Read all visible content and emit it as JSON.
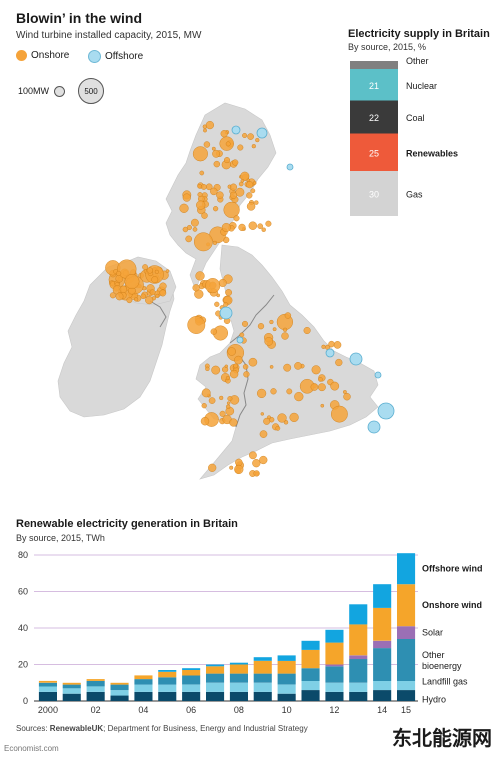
{
  "map": {
    "title": "Blowin’ in the wind",
    "subtitle": "Wind turbine installed capacity, 2015, MW",
    "legend": {
      "onshore": "Onshore",
      "offshore": "Offshore",
      "size_small": "100MW",
      "size_large": "500"
    },
    "colors": {
      "onshore": "#F5A33A",
      "offshore": "#A9DCF0",
      "land": "#D9D9D9",
      "sea": "#FFFFFF"
    }
  },
  "supply": {
    "title": "Electricity supply in Britain",
    "subtitle": "By source, 2015, %",
    "segments": [
      {
        "name": "Other",
        "value": null,
        "color": "#808080"
      },
      {
        "name": "Nuclear",
        "value": 21,
        "color": "#5CC0C8"
      },
      {
        "name": "Coal",
        "value": 22,
        "color": "#3A3A3A"
      },
      {
        "name": "Renewables",
        "value": 25,
        "color": "#EE5A3A"
      },
      {
        "name": "Gas",
        "value": 30,
        "color": "#D3D3D3"
      }
    ]
  },
  "chart_data": {
    "type": "bar",
    "stacked": true,
    "title": "Renewable electricity generation in Britain",
    "subtitle": "By source, 2015, TWh",
    "x": [
      "2000",
      "01",
      "02",
      "03",
      "04",
      "05",
      "06",
      "07",
      "08",
      "09",
      "10",
      "11",
      "12",
      "13",
      "14",
      "15"
    ],
    "x_tick_labels": [
      "2000",
      "02",
      "04",
      "06",
      "08",
      "10",
      "12",
      "14",
      "15"
    ],
    "ylim": [
      0,
      80
    ],
    "yticks": [
      0,
      20,
      40,
      60,
      80
    ],
    "series": [
      {
        "name": "Hydro",
        "color": "#0B4A6A",
        "values": [
          5,
          4,
          5,
          3,
          5,
          5,
          5,
          5,
          5,
          5,
          4,
          6,
          5,
          5,
          6,
          6
        ]
      },
      {
        "name": "Landfill gas",
        "color": "#7FD0E6",
        "values": [
          3,
          3,
          3,
          3,
          4,
          4,
          4,
          5,
          5,
          5,
          5,
          5,
          5,
          5,
          5,
          5
        ]
      },
      {
        "name": "Other bioenergy",
        "color": "#2E8FB2",
        "values": [
          2,
          2,
          3,
          3,
          3,
          4,
          5,
          5,
          5,
          5,
          6,
          7,
          9,
          13,
          18,
          23
        ]
      },
      {
        "name": "Solar",
        "color": "#9B6FB5",
        "values": [
          0,
          0,
          0,
          0,
          0,
          0,
          0,
          0,
          0,
          0,
          0,
          0,
          1,
          2,
          4,
          7
        ]
      },
      {
        "name": "Onshore wind",
        "color": "#F5A52A",
        "values": [
          1,
          1,
          1,
          1,
          2,
          3,
          3,
          4,
          5,
          7,
          7,
          10,
          12,
          17,
          18,
          23
        ]
      },
      {
        "name": "Offshore wind",
        "color": "#12A5E0",
        "values": [
          0,
          0,
          0,
          0,
          0,
          1,
          1,
          1,
          1,
          2,
          3,
          5,
          7,
          11,
          13,
          17
        ]
      }
    ]
  },
  "footer": {
    "sources_prefix": "Sources: ",
    "sources_bold": "RenewableUK",
    "sources_rest": "; Department for Business, Energy and Industrial Strategy",
    "credit": "Economist.com",
    "watermark": "东北能源网"
  }
}
